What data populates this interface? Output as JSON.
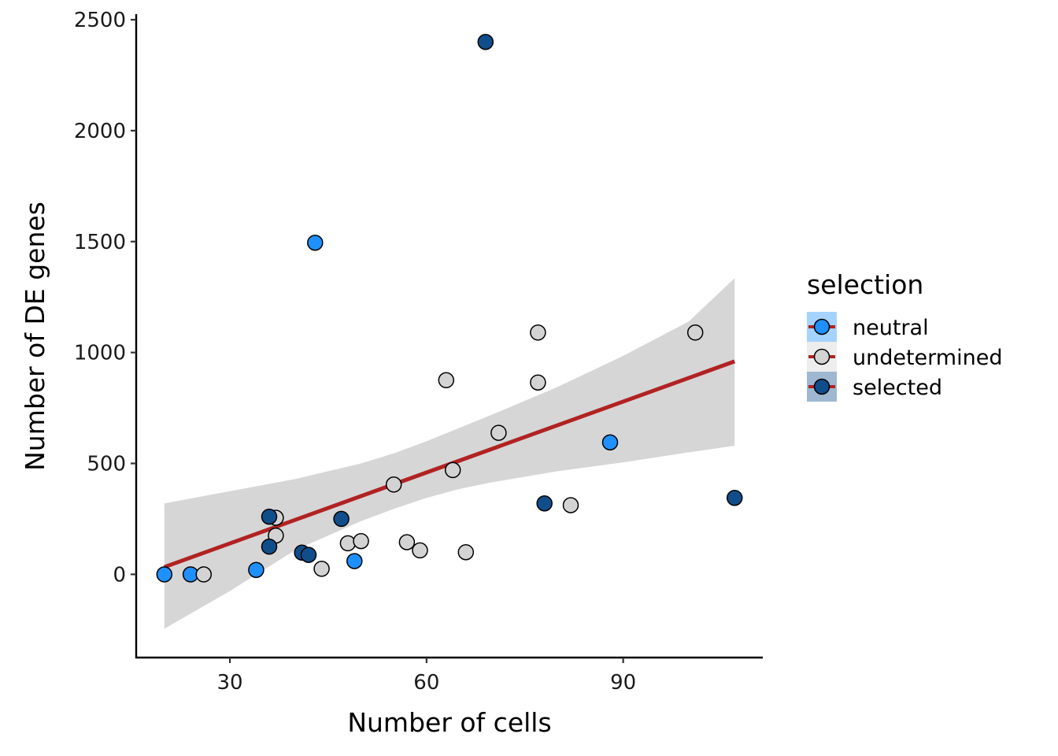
{
  "chart_data": {
    "type": "scatter",
    "title": "",
    "xlabel": "Number of cells",
    "ylabel": "Number of DE genes",
    "xlim": [
      15.7,
      111.3
    ],
    "ylim": [
      -375,
      2525
    ],
    "xticks": [
      30,
      60,
      90
    ],
    "yticks": [
      0,
      500,
      1000,
      1500,
      2000,
      2500
    ],
    "grid": false,
    "legend": {
      "title": "selection",
      "placement": "right",
      "entries": [
        "neutral",
        "undetermined",
        "selected"
      ]
    },
    "colors": {
      "neutral": "#1E90FF",
      "undetermined": "#D3D3D3",
      "selected": "#104E8B",
      "trend_line": "#B22222",
      "confidence_band": "#D6D6D6"
    },
    "series": [
      {
        "name": "neutral",
        "points": [
          [
            20,
            0
          ],
          [
            24,
            0
          ],
          [
            34,
            20
          ],
          [
            43,
            1495
          ],
          [
            49,
            60
          ],
          [
            88,
            595
          ]
        ]
      },
      {
        "name": "undetermined",
        "points": [
          [
            26,
            0
          ],
          [
            37,
            255
          ],
          [
            37,
            175
          ],
          [
            44,
            25
          ],
          [
            48,
            140
          ],
          [
            50,
            150
          ],
          [
            55,
            405
          ],
          [
            57,
            145
          ],
          [
            59,
            108
          ],
          [
            63,
            875
          ],
          [
            64,
            470
          ],
          [
            66,
            100
          ],
          [
            71,
            638
          ],
          [
            77,
            1090
          ],
          [
            77,
            865
          ],
          [
            82,
            312
          ],
          [
            101,
            1090
          ]
        ]
      },
      {
        "name": "selected",
        "points": [
          [
            36,
            260
          ],
          [
            36,
            125
          ],
          [
            41,
            98
          ],
          [
            42,
            88
          ],
          [
            47,
            250
          ],
          [
            69,
            2400
          ],
          [
            78,
            320
          ],
          [
            107,
            345
          ]
        ]
      }
    ],
    "trend": {
      "type": "linear",
      "x": [
        20,
        107
      ],
      "y": [
        33,
        960
      ],
      "confidence_band": {
        "x": [
          20,
          30,
          40,
          50,
          55,
          60,
          65,
          70,
          80,
          90,
          100,
          107
        ],
        "lower": [
          -245,
          -75,
          110,
          240,
          295,
          345,
          385,
          415,
          465,
          505,
          550,
          580
        ],
        "upper": [
          320,
          375,
          430,
          500,
          545,
          600,
          660,
          720,
          845,
          985,
          1140,
          1335
        ]
      }
    }
  }
}
